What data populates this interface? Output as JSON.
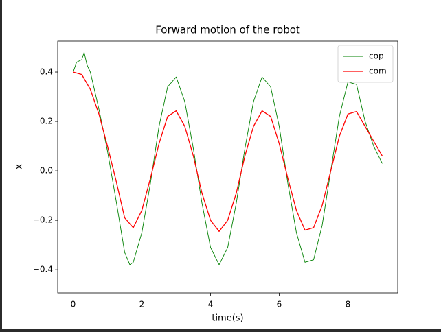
{
  "chart_data": {
    "type": "line",
    "title": "Forward motion of the robot",
    "xlabel": "time(s)",
    "ylabel": "x",
    "series": [
      {
        "name": "cop",
        "color": "#008000",
        "x": [
          0,
          0.1,
          0.25,
          0.32,
          0.4,
          0.5,
          0.75,
          1.0,
          1.25,
          1.5,
          1.65,
          1.75,
          2.0,
          2.25,
          2.5,
          2.75,
          3.0,
          3.25,
          3.5,
          3.75,
          4.0,
          4.25,
          4.5,
          4.75,
          5.0,
          5.25,
          5.5,
          5.75,
          6.0,
          6.25,
          6.5,
          6.75,
          7.0,
          7.25,
          7.5,
          7.75,
          8.0,
          8.25,
          8.5,
          8.75,
          9.0
        ],
        "values": [
          0.4,
          0.44,
          0.45,
          0.48,
          0.43,
          0.4,
          0.25,
          0.08,
          -0.12,
          -0.33,
          -0.38,
          -0.37,
          -0.25,
          -0.05,
          0.18,
          0.34,
          0.38,
          0.28,
          0.09,
          -0.13,
          -0.31,
          -0.38,
          -0.31,
          -0.13,
          0.09,
          0.28,
          0.38,
          0.34,
          0.18,
          -0.05,
          -0.25,
          -0.37,
          -0.36,
          -0.22,
          0.0,
          0.22,
          0.36,
          0.35,
          0.2,
          0.1,
          0.03
        ]
      },
      {
        "name": "com",
        "color": "#ff0000",
        "x": [
          0,
          0.25,
          0.5,
          0.75,
          1.0,
          1.25,
          1.5,
          1.75,
          2.0,
          2.25,
          2.5,
          2.75,
          3.0,
          3.25,
          3.5,
          3.75,
          4.0,
          4.25,
          4.5,
          4.75,
          5.0,
          5.25,
          5.5,
          5.75,
          6.0,
          6.25,
          6.5,
          6.75,
          7.0,
          7.25,
          7.5,
          7.75,
          8.0,
          8.25,
          8.5,
          8.75,
          9.0
        ],
        "values": [
          0.4,
          0.39,
          0.33,
          0.23,
          0.1,
          -0.04,
          -0.19,
          -0.23,
          -0.16,
          -0.03,
          0.11,
          0.22,
          0.243,
          0.18,
          0.06,
          -0.09,
          -0.2,
          -0.245,
          -0.2,
          -0.09,
          0.06,
          0.18,
          0.243,
          0.22,
          0.11,
          -0.03,
          -0.16,
          -0.24,
          -0.23,
          -0.14,
          0.0,
          0.14,
          0.23,
          0.24,
          0.18,
          0.12,
          0.06
        ]
      }
    ],
    "xlim": [
      -0.45,
      9.45
    ],
    "ylim": [
      -0.494,
      0.525
    ],
    "xticks": [
      0,
      2,
      4,
      6,
      8
    ],
    "yticks": [
      {
        "value": -0.4,
        "label": "−0.4"
      },
      {
        "value": -0.2,
        "label": "−0.2"
      },
      {
        "value": 0,
        "label": "0.0"
      },
      0.2,
      0.4
    ],
    "legend": "upper right"
  }
}
